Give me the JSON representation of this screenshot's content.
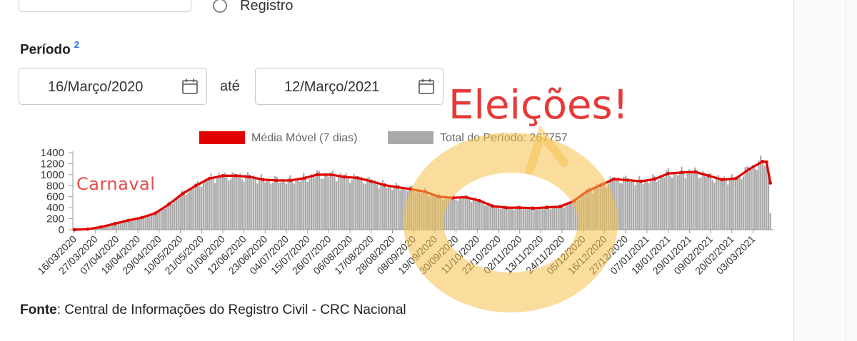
{
  "form": {
    "radio_label": "Registro",
    "period_label": "Período",
    "period_sup": "2",
    "start_date": "16/Março/2020",
    "separator": "até",
    "end_date": "12/Março/2021",
    "source_label": "Fonte",
    "source_text": ": Central de Informações do Registro Civil - CRC Nacional"
  },
  "annotations": {
    "carnaval": "Carnaval",
    "eleicoes": "Eleições!",
    "highlight_color": "#f5c04a"
  },
  "chart_data": {
    "type": "bar",
    "legend": [
      {
        "label": "Média Móvel (7 dias)",
        "color": "#e00000"
      },
      {
        "label": "Total do Período: 267757",
        "color": "#aaaaaa"
      }
    ],
    "legend_position": "top",
    "ylim": [
      0,
      1400
    ],
    "yticks": [
      0,
      200,
      400,
      600,
      800,
      1000,
      1200,
      1400
    ],
    "grid": false,
    "xticks": [
      "16/03/2020",
      "27/03/2020",
      "07/04/2020",
      "18/04/2020",
      "29/04/2020",
      "10/05/2020",
      "21/05/2020",
      "01/06/2020",
      "12/06/2020",
      "23/06/2020",
      "04/07/2020",
      "15/07/2020",
      "26/07/2020",
      "06/08/2020",
      "17/08/2020",
      "28/08/2020",
      "08/09/2020",
      "19/09/2020",
      "30/09/2020",
      "11/10/2020",
      "22/10/2020",
      "02/11/2020",
      "13/11/2020",
      "24/11/2020",
      "05/12/2020",
      "16/12/2020",
      "27/12/2020",
      "07/01/2021",
      "18/01/2021",
      "29/01/2021",
      "09/02/2021",
      "20/02/2021",
      "03/03/2021"
    ],
    "series": [
      {
        "name": "Média Móvel (7 dias)",
        "type": "line",
        "color": "#e00000",
        "points": [
          [
            "16/03/2020",
            0
          ],
          [
            "23/03/2020",
            10
          ],
          [
            "30/03/2020",
            50
          ],
          [
            "06/04/2020",
            110
          ],
          [
            "13/04/2020",
            170
          ],
          [
            "20/04/2020",
            220
          ],
          [
            "27/04/2020",
            300
          ],
          [
            "04/05/2020",
            460
          ],
          [
            "11/05/2020",
            650
          ],
          [
            "18/05/2020",
            800
          ],
          [
            "25/05/2020",
            930
          ],
          [
            "01/06/2020",
            980
          ],
          [
            "08/06/2020",
            980
          ],
          [
            "15/06/2020",
            960
          ],
          [
            "22/06/2020",
            910
          ],
          [
            "29/06/2020",
            895
          ],
          [
            "06/07/2020",
            895
          ],
          [
            "13/07/2020",
            935
          ],
          [
            "20/07/2020",
            1000
          ],
          [
            "27/07/2020",
            1000
          ],
          [
            "03/08/2020",
            960
          ],
          [
            "10/08/2020",
            940
          ],
          [
            "17/08/2020",
            880
          ],
          [
            "24/08/2020",
            810
          ],
          [
            "31/08/2020",
            770
          ],
          [
            "07/09/2020",
            735
          ],
          [
            "14/09/2020",
            690
          ],
          [
            "21/09/2020",
            600
          ],
          [
            "28/09/2020",
            580
          ],
          [
            "05/10/2020",
            590
          ],
          [
            "12/10/2020",
            530
          ],
          [
            "19/10/2020",
            430
          ],
          [
            "26/10/2020",
            400
          ],
          [
            "02/11/2020",
            400
          ],
          [
            "09/11/2020",
            390
          ],
          [
            "16/11/2020",
            405
          ],
          [
            "23/11/2020",
            420
          ],
          [
            "30/11/2020",
            520
          ],
          [
            "07/12/2020",
            700
          ],
          [
            "14/12/2020",
            810
          ],
          [
            "21/12/2020",
            920
          ],
          [
            "28/12/2020",
            900
          ],
          [
            "04/01/2021",
            880
          ],
          [
            "11/01/2021",
            920
          ],
          [
            "18/01/2021",
            1020
          ],
          [
            "25/01/2021",
            1040
          ],
          [
            "01/02/2021",
            1050
          ],
          [
            "08/02/2021",
            980
          ],
          [
            "15/02/2021",
            910
          ],
          [
            "22/02/2021",
            930
          ],
          [
            "01/03/2021",
            1100
          ],
          [
            "08/03/2021",
            1240
          ],
          [
            "10/03/2021",
            1230
          ],
          [
            "12/03/2021",
            850
          ]
        ]
      },
      {
        "name": "Total do Período: 267757",
        "type": "bar",
        "color": "#aaaaaa",
        "daily_values_follow": "Média Móvel (7 dias)",
        "last_day_value": 300
      }
    ]
  }
}
